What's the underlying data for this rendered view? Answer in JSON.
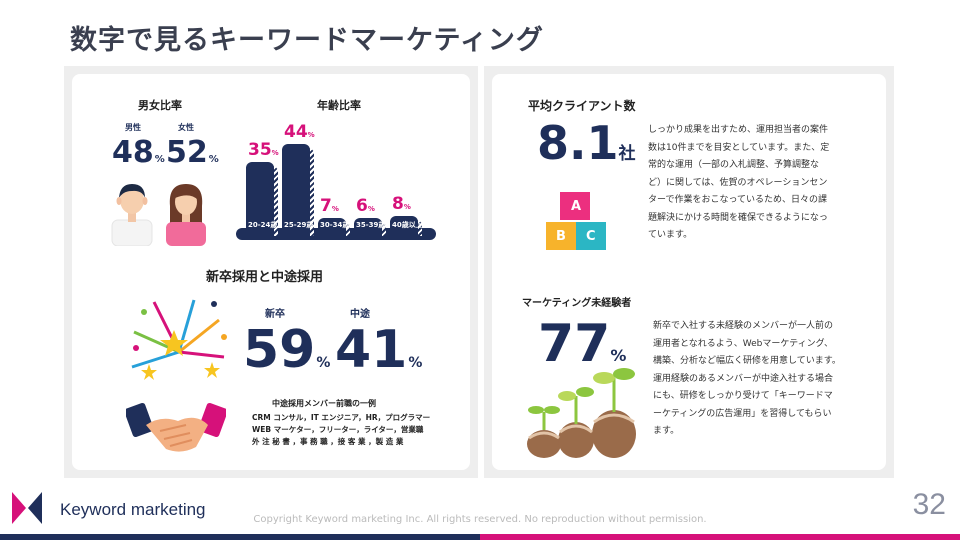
{
  "title": "数字で見るキーワードマーケティング",
  "gender": {
    "heading": "男女比率",
    "male_label": "男性",
    "male_value": "48",
    "female_label": "女性",
    "female_value": "52",
    "unit": "%"
  },
  "age": {
    "heading": "年齢比率",
    "bars": [
      {
        "label": "20-24歳",
        "value": "35",
        "pct": 35
      },
      {
        "label": "25-29歳",
        "value": "44",
        "pct": 44
      },
      {
        "label": "30-34歳",
        "value": "7",
        "pct": 7
      },
      {
        "label": "35-39歳",
        "value": "6",
        "pct": 6
      },
      {
        "label": "40歳以上",
        "value": "8",
        "pct": 8
      }
    ],
    "unit": "%"
  },
  "hiring": {
    "heading": "新卒採用と中途採用",
    "new_label": "新卒",
    "new_value": "59",
    "mid_label": "中途",
    "mid_value": "41",
    "unit": "%",
    "examples_heading": "中途採用メンバー前職の一例",
    "examples": [
      "CRM コンサル，IT エンジニア，HR，プログラマー",
      "WEB マーケター，フリーター，ライター，営業職",
      "外 注 秘 書 ，事 務 職 ，接 客 業 ，製 造 業"
    ]
  },
  "clients": {
    "heading": "平均クライアント数",
    "value": "8.1",
    "unit": "社",
    "blocks": [
      "A",
      "B",
      "C"
    ],
    "description": [
      "しっかり成果を出すため、運用担当者の案件",
      "数は10件までを目安としています。また、定",
      "常的な運用（一部の入札調整、予算調整な",
      "ど）に関しては、佐賀のオペレーションセン",
      "ターで作業をおこなっているため、日々の課",
      "題解決にかける時間を確保できるようになっ",
      "ています。"
    ]
  },
  "inexperienced": {
    "heading": "マーケティング未経験者",
    "value": "77",
    "unit": "%",
    "description": [
      "新卒で入社する未経験のメンバーが一人前の",
      "運用者となれるよう、Webマーケティング、",
      "構築、分析など幅広く研修を用意しています。",
      "運用経験のあるメンバーが中途入社する場合",
      "にも、研修をしっかり受けて「キーワードマ",
      "ーケティングの広告運用」を習得してもらい",
      "ます。"
    ]
  },
  "footer": {
    "brand": "Keyword marketing",
    "copyright": "Copyright Keyword marketing Inc. All rights reserved. No reproduction without permission.",
    "page": "32"
  },
  "colors": {
    "navy": "#1f2f5a",
    "pink": "#d6117a",
    "panel": "#eeeeee"
  }
}
